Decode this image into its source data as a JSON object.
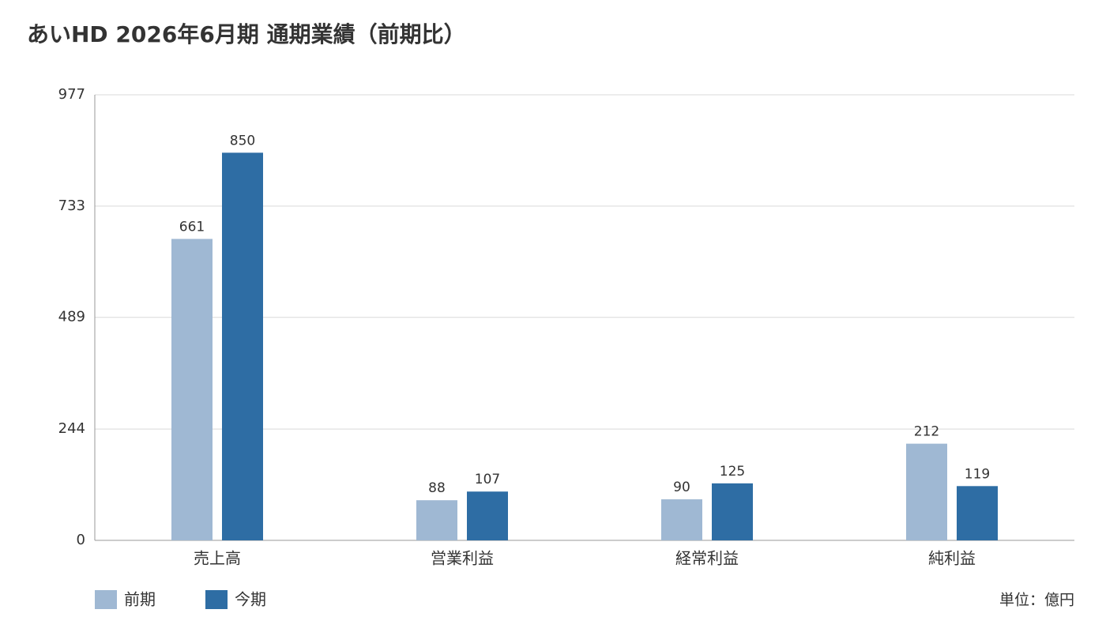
{
  "chart_data": {
    "type": "bar",
    "title": "あいHD 2026年6月期 通期業績（前期比）",
    "categories": [
      "売上高",
      "営業利益",
      "経常利益",
      "純利益"
    ],
    "series": [
      {
        "name": "前期",
        "color": "#9fb8d3",
        "values": [
          661,
          88,
          90,
          212
        ]
      },
      {
        "name": "今期",
        "color": "#2e6da4",
        "values": [
          850,
          107,
          125,
          119
        ]
      }
    ],
    "ylim": [
      0,
      977
    ],
    "yticks": [
      0,
      244,
      489,
      733,
      977
    ],
    "grid": true,
    "legend": "bottom-left",
    "unit": "単位：億円"
  }
}
